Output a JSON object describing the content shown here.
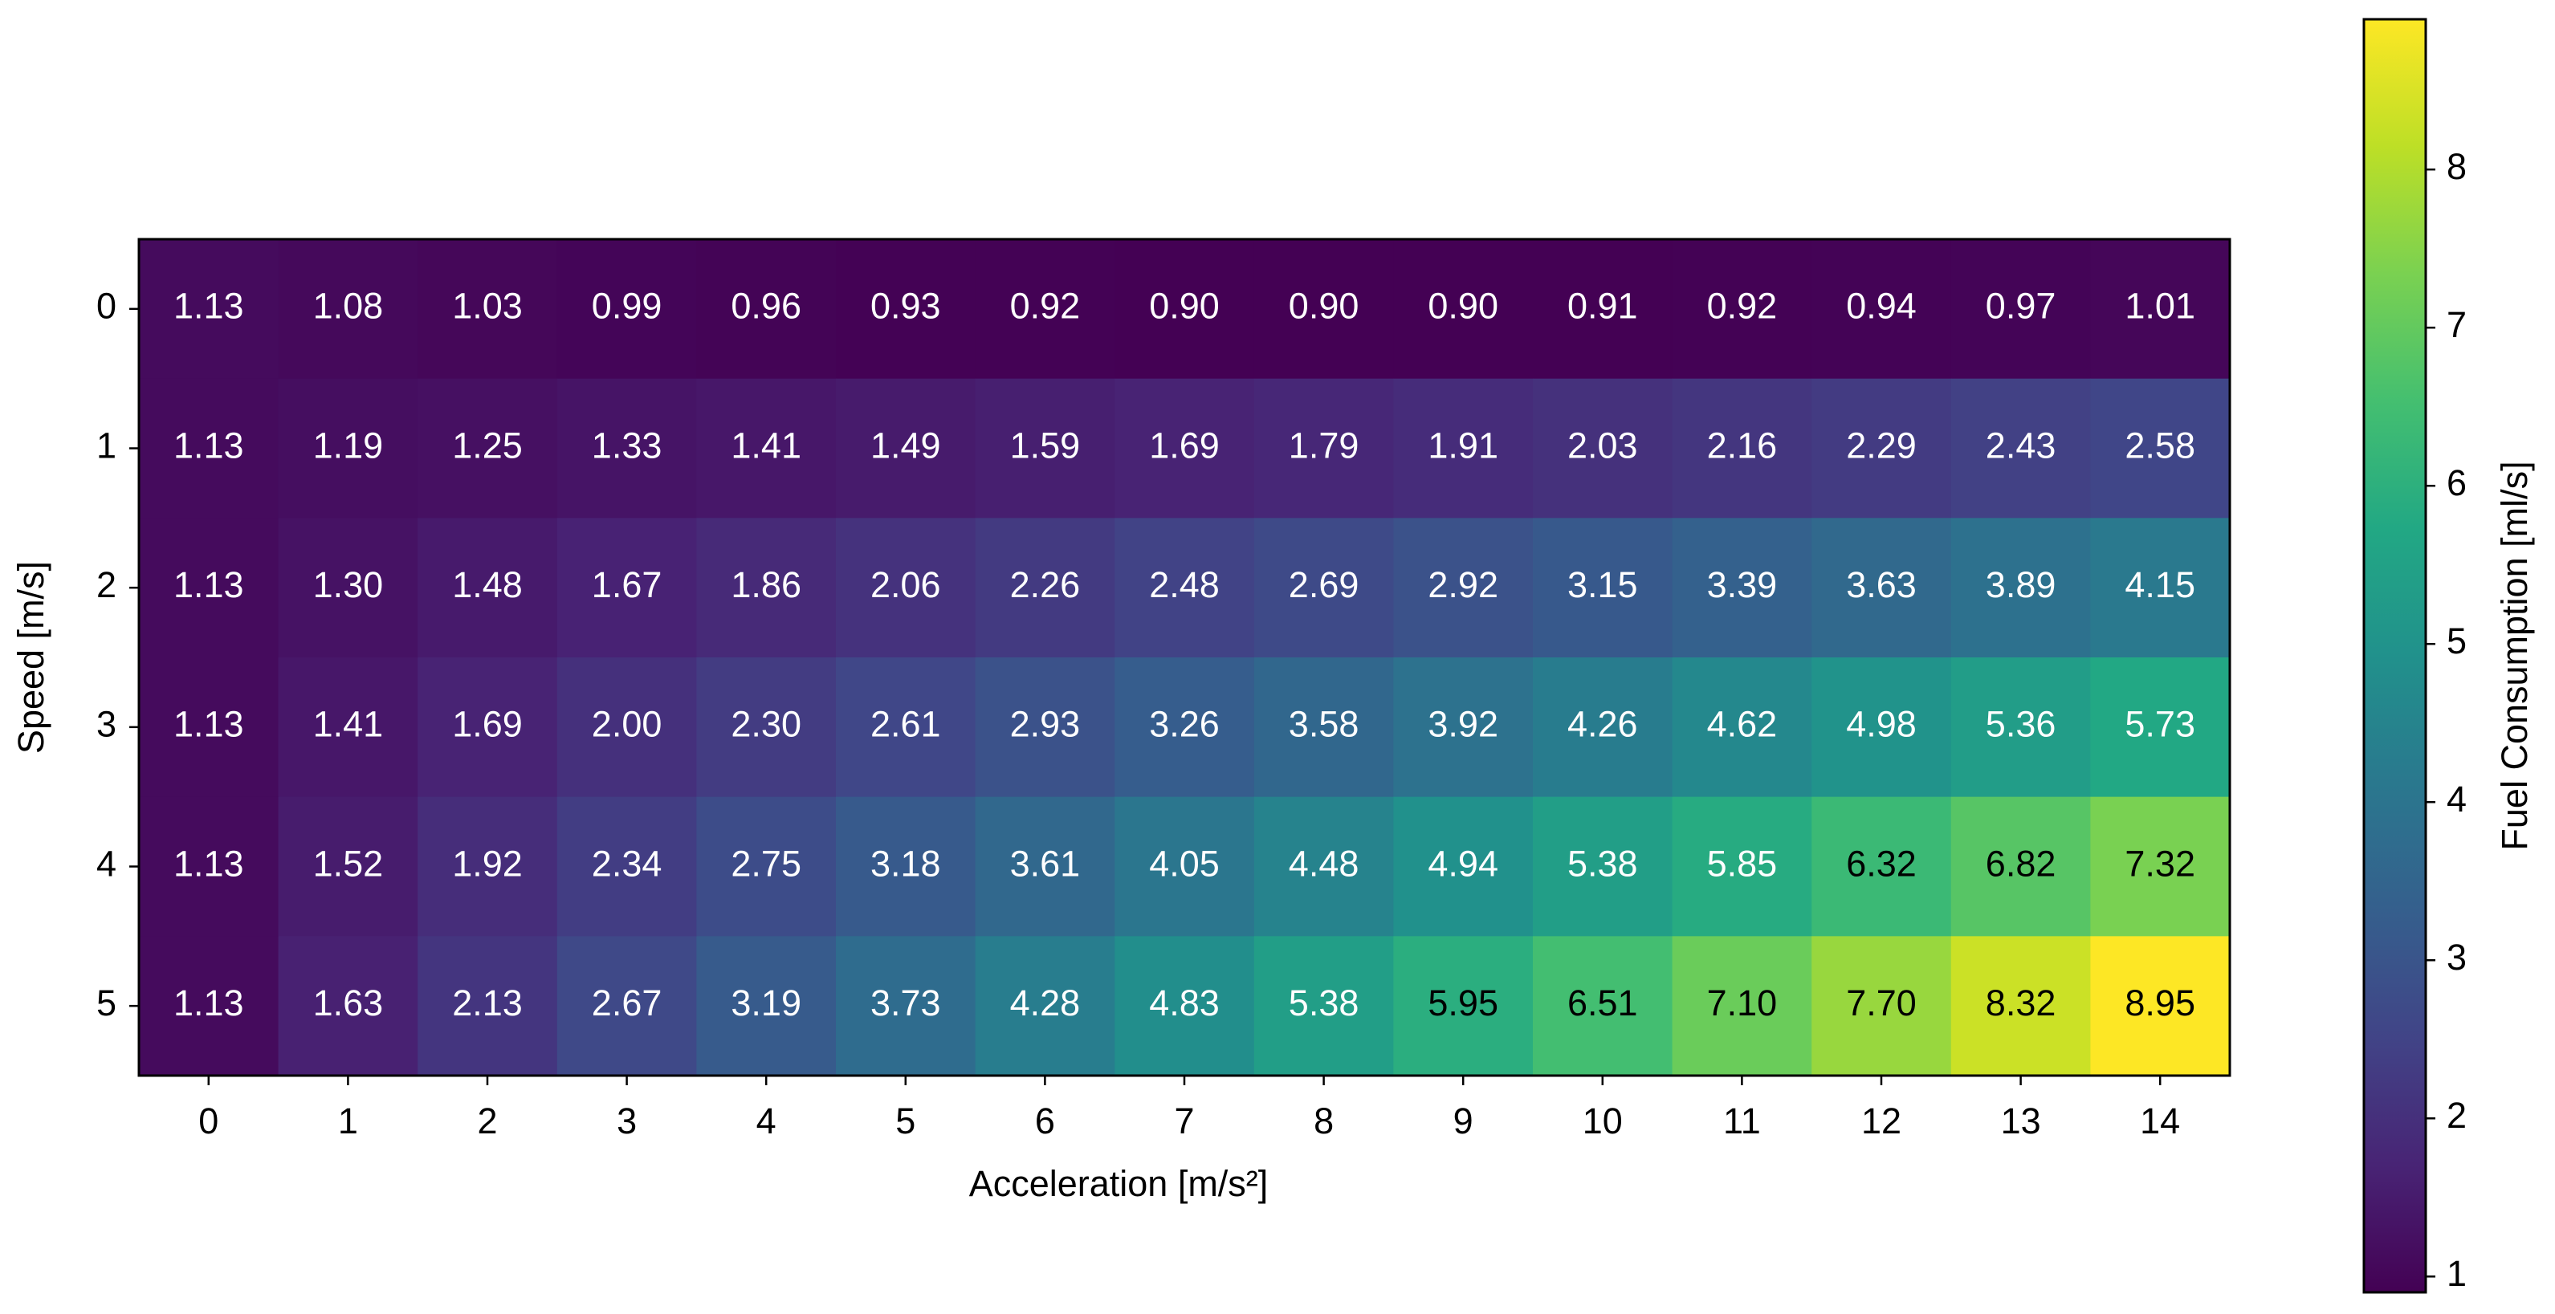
{
  "chart_data": {
    "type": "heatmap",
    "xlabel": "Acceleration [m/s²]",
    "ylabel": "Speed [m/s]",
    "x_categories": [
      0,
      1,
      2,
      3,
      4,
      5,
      6,
      7,
      8,
      9,
      10,
      11,
      12,
      13,
      14
    ],
    "y_categories": [
      0,
      1,
      2,
      3,
      4,
      5
    ],
    "values": [
      [
        1.13,
        1.08,
        1.03,
        0.99,
        0.96,
        0.93,
        0.92,
        0.9,
        0.9,
        0.9,
        0.91,
        0.92,
        0.94,
        0.97,
        1.01
      ],
      [
        1.13,
        1.19,
        1.25,
        1.33,
        1.41,
        1.49,
        1.59,
        1.69,
        1.79,
        1.91,
        2.03,
        2.16,
        2.29,
        2.43,
        2.58
      ],
      [
        1.13,
        1.3,
        1.48,
        1.67,
        1.86,
        2.06,
        2.26,
        2.48,
        2.69,
        2.92,
        3.15,
        3.39,
        3.63,
        3.89,
        4.15
      ],
      [
        1.13,
        1.41,
        1.69,
        2.0,
        2.3,
        2.61,
        2.93,
        3.26,
        3.58,
        3.92,
        4.26,
        4.62,
        4.98,
        5.36,
        5.73
      ],
      [
        1.13,
        1.52,
        1.92,
        2.34,
        2.75,
        3.18,
        3.61,
        4.05,
        4.48,
        4.94,
        5.38,
        5.85,
        6.32,
        6.82,
        7.32
      ],
      [
        1.13,
        1.63,
        2.13,
        2.67,
        3.19,
        3.73,
        4.28,
        4.83,
        5.38,
        5.95,
        6.51,
        7.1,
        7.7,
        8.32,
        8.95
      ]
    ],
    "value_labels": [
      [
        "1.13",
        "1.08",
        "1.03",
        "0.99",
        "0.96",
        "0.93",
        "0.92",
        "0.90",
        "0.90",
        "0.90",
        "0.91",
        "0.92",
        "0.94",
        "0.97",
        "1.01"
      ],
      [
        "1.13",
        "1.19",
        "1.25",
        "1.33",
        "1.41",
        "1.49",
        "1.59",
        "1.69",
        "1.79",
        "1.91",
        "2.03",
        "2.16",
        "2.29",
        "2.43",
        "2.58"
      ],
      [
        "1.13",
        "1.30",
        "1.48",
        "1.67",
        "1.86",
        "2.06",
        "2.26",
        "2.48",
        "2.69",
        "2.92",
        "3.15",
        "3.39",
        "3.63",
        "3.89",
        "4.15"
      ],
      [
        "1.13",
        "1.41",
        "1.69",
        "2.00",
        "2.30",
        "2.61",
        "2.93",
        "3.26",
        "3.58",
        "3.92",
        "4.26",
        "4.62",
        "4.98",
        "5.36",
        "5.73"
      ],
      [
        "1.13",
        "1.52",
        "1.92",
        "2.34",
        "2.75",
        "3.18",
        "3.61",
        "4.05",
        "4.48",
        "4.94",
        "5.38",
        "5.85",
        "6.32",
        "6.82",
        "7.32"
      ],
      [
        "1.13",
        "1.63",
        "2.13",
        "2.67",
        "3.19",
        "3.73",
        "4.28",
        "4.83",
        "5.38",
        "5.95",
        "6.51",
        "7.10",
        "7.70",
        "8.32",
        "8.95"
      ]
    ],
    "colormap": "viridis",
    "clim": [
      0.9,
      8.95
    ],
    "cticks": [
      1,
      2,
      3,
      4,
      5,
      6,
      7,
      8
    ],
    "colorbar_label": "Fuel Consumption [ml/s]"
  }
}
